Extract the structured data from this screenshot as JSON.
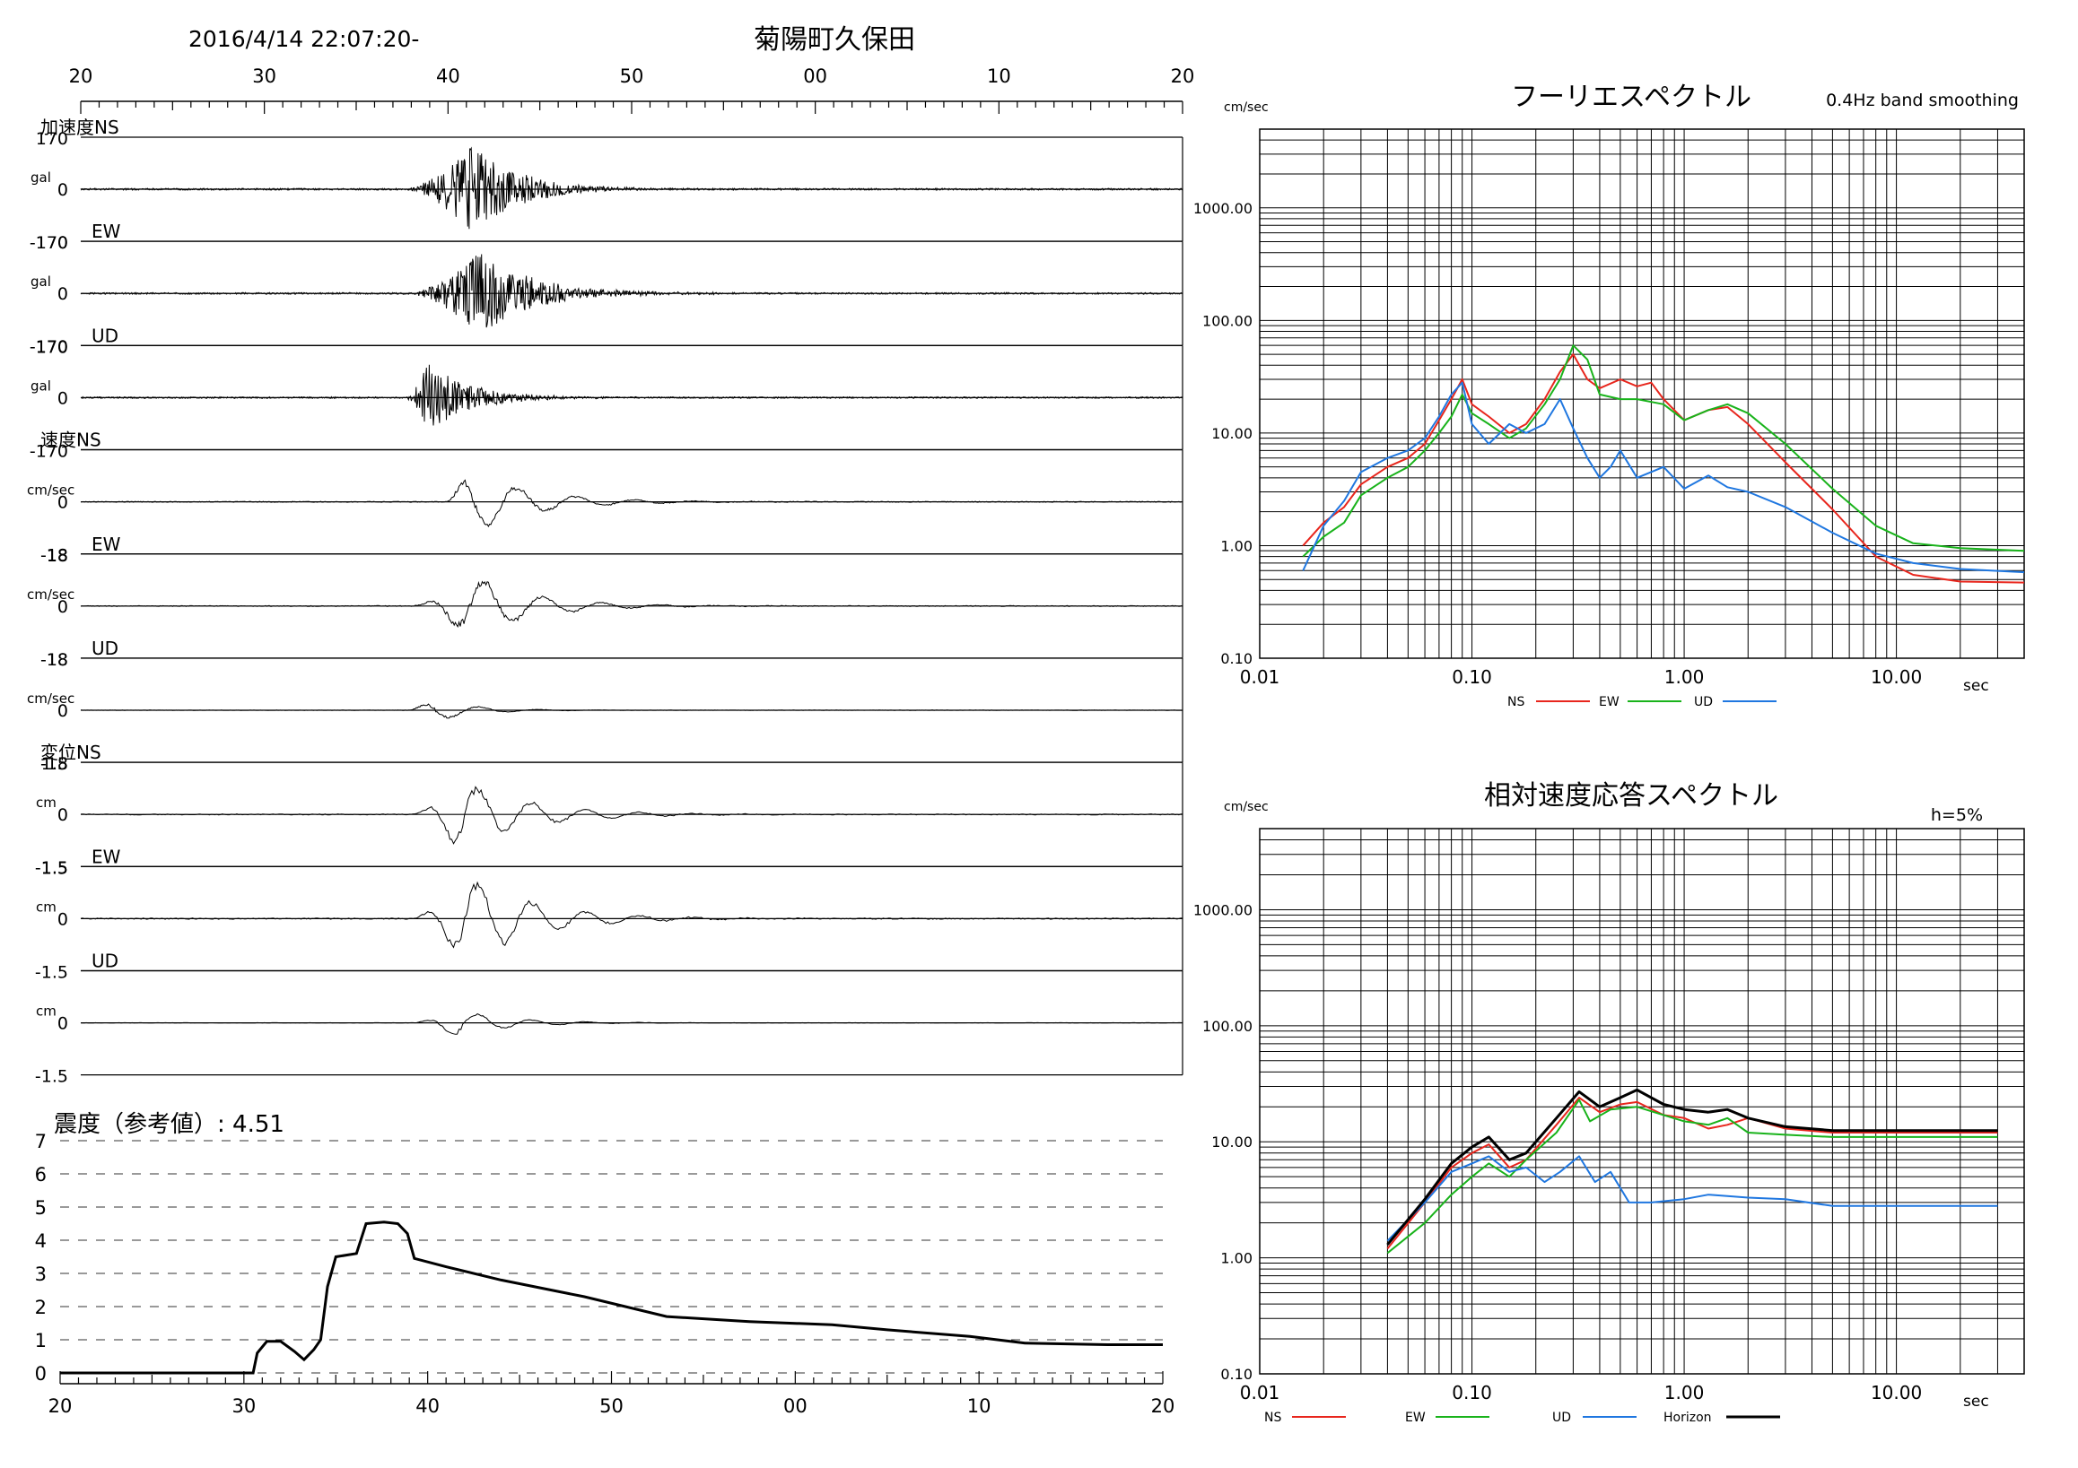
{
  "header": {
    "datetime": "2016/4/14 22:07:20-",
    "station": "菊陽町久保田"
  },
  "time_axis": {
    "top_labels": [
      "20",
      "30",
      "40",
      "50",
      "00",
      "10",
      "20"
    ],
    "bottom_labels": [
      "20",
      "30",
      "40",
      "50",
      "00",
      "10",
      "20"
    ]
  },
  "waveforms": {
    "group_labels": {
      "acc": "加速度",
      "vel": "速度",
      "disp": "変位"
    },
    "traces": [
      {
        "group": "acc",
        "comp": "NS",
        "unit": "gal",
        "max": "170",
        "zero": "0",
        "min": "-170",
        "amp": 0.42,
        "decay": 0.35,
        "start": 0.295,
        "peak": 0.355,
        "freq": 0.0012,
        "seed": 1
      },
      {
        "group": "acc",
        "comp": "EW",
        "unit": "gal",
        "max": "170",
        "zero": "0",
        "min": "-170",
        "amp": 0.4,
        "decay": 0.4,
        "start": 0.298,
        "peak": 0.362,
        "freq": 0.0014,
        "seed": 2
      },
      {
        "group": "acc",
        "comp": "UD",
        "unit": "gal",
        "max": "170",
        "zero": "0",
        "min": "-170",
        "amp": 0.36,
        "decay": 0.3,
        "start": 0.295,
        "peak": 0.315,
        "freq": 0.001,
        "seed": 3
      },
      {
        "group": "vel",
        "comp": "NS",
        "unit": "cm/sec",
        "max": "",
        "zero": "0",
        "min": "-18",
        "amp": 0.3,
        "decay": 0.45,
        "start": 0.33,
        "peak": 0.352,
        "freq": 0.006,
        "seed": 4
      },
      {
        "group": "vel",
        "comp": "EW",
        "unit": "cm/sec",
        "max": "18",
        "zero": "0",
        "min": "-18",
        "amp": 0.28,
        "decay": 0.45,
        "start": 0.3,
        "peak": 0.355,
        "freq": 0.006,
        "seed": 5
      },
      {
        "group": "vel",
        "comp": "UD",
        "unit": "cm/sec",
        "max": "18",
        "zero": "0",
        "min": "-18",
        "amp": 0.1,
        "decay": 0.3,
        "start": 0.295,
        "peak": 0.32,
        "freq": 0.005,
        "seed": 6
      },
      {
        "group": "disp",
        "comp": "NS",
        "unit": "cm",
        "max": "1.5",
        "zero": "0",
        "min": "-1.5",
        "amp": 0.32,
        "decay": 0.5,
        "start": 0.3,
        "peak": 0.345,
        "freq": 0.015,
        "seed": 7
      },
      {
        "group": "disp",
        "comp": "EW",
        "unit": "cm",
        "max": "1.5",
        "zero": "0",
        "min": "-1.5",
        "amp": 0.4,
        "decay": 0.5,
        "start": 0.3,
        "peak": 0.35,
        "freq": 0.015,
        "seed": 8
      },
      {
        "group": "disp",
        "comp": "UD",
        "unit": "cm",
        "max": "",
        "zero": "0",
        "min": "-1.5",
        "amp": 0.12,
        "decay": 0.4,
        "start": 0.3,
        "peak": 0.34,
        "freq": 0.015,
        "seed": 9
      }
    ]
  },
  "intensity": {
    "label": "震度（参考値）: 4.51",
    "y_ticks": [
      "7",
      "6",
      "5",
      "4",
      "3",
      "2",
      "1",
      "0"
    ]
  },
  "chart_data": [
    {
      "type": "line",
      "title": "震度（参考値）: 4.51",
      "x_unit": "seconds after 22:07:20",
      "x_ticks": [
        "20",
        "30",
        "40",
        "50",
        "00",
        "10",
        "20"
      ],
      "ylim": [
        0,
        7
      ],
      "series": [
        {
          "values": [
            [
              0,
              0
            ],
            [
              14,
              0
            ],
            [
              14.3,
              0.6
            ],
            [
              15,
              0.95
            ],
            [
              16,
              0.95
            ],
            [
              17,
              0.65
            ],
            [
              17.7,
              0.4
            ],
            [
              18.4,
              0.7
            ],
            [
              18.9,
              1.0
            ],
            [
              19.4,
              2.6
            ],
            [
              20,
              3.5
            ],
            [
              21.5,
              3.6
            ],
            [
              22.2,
              4.5
            ],
            [
              23.5,
              4.55
            ],
            [
              24.5,
              4.5
            ],
            [
              25.2,
              4.2
            ],
            [
              25.7,
              3.45
            ],
            [
              28,
              3.2
            ],
            [
              32,
              2.8
            ],
            [
              38,
              2.3
            ],
            [
              44,
              1.7
            ],
            [
              50,
              1.55
            ],
            [
              56,
              1.45
            ],
            [
              60,
              1.3
            ],
            [
              66,
              1.1
            ],
            [
              70,
              0.9
            ],
            [
              76,
              0.85
            ],
            [
              80,
              0.85
            ]
          ]
        }
      ]
    },
    {
      "type": "line",
      "title": "フーリエスペクトル",
      "subtitle": "0.4Hz band smoothing",
      "ylabel": "cm/sec",
      "xlabel": "sec",
      "x_scale": "log",
      "y_scale": "log",
      "xlim": [
        0.01,
        40
      ],
      "ylim": [
        0.1,
        5000
      ],
      "x_tick_labels": [
        "0.01",
        "0.10",
        "1.00",
        "10.00"
      ],
      "y_tick_labels": [
        "0.10",
        "1.00",
        "10.00",
        "100.00",
        "1000.00"
      ],
      "colors": {
        "NS": "#e8261d",
        "EW": "#19b31b",
        "UD": "#1f77e0"
      },
      "series": [
        {
          "name": "NS",
          "values": [
            [
              0.016,
              1.0
            ],
            [
              0.02,
              1.6
            ],
            [
              0.025,
              2.2
            ],
            [
              0.03,
              3.5
            ],
            [
              0.04,
              5
            ],
            [
              0.05,
              6
            ],
            [
              0.06,
              8
            ],
            [
              0.07,
              13
            ],
            [
              0.08,
              20
            ],
            [
              0.09,
              30
            ],
            [
              0.1,
              18
            ],
            [
              0.12,
              14
            ],
            [
              0.15,
              10
            ],
            [
              0.18,
              12
            ],
            [
              0.22,
              20
            ],
            [
              0.26,
              35
            ],
            [
              0.3,
              50
            ],
            [
              0.35,
              30
            ],
            [
              0.4,
              25
            ],
            [
              0.5,
              30
            ],
            [
              0.6,
              26
            ],
            [
              0.7,
              28
            ],
            [
              0.8,
              20
            ],
            [
              1.0,
              13
            ],
            [
              1.3,
              16
            ],
            [
              1.6,
              17
            ],
            [
              2.0,
              12
            ],
            [
              3.0,
              5.5
            ],
            [
              5.0,
              2.1
            ],
            [
              8.0,
              0.8
            ],
            [
              12,
              0.55
            ],
            [
              20,
              0.48
            ],
            [
              40,
              0.47
            ]
          ]
        },
        {
          "name": "EW",
          "values": [
            [
              0.016,
              0.8
            ],
            [
              0.02,
              1.2
            ],
            [
              0.025,
              1.6
            ],
            [
              0.03,
              2.8
            ],
            [
              0.04,
              4
            ],
            [
              0.05,
              5
            ],
            [
              0.06,
              7
            ],
            [
              0.07,
              10
            ],
            [
              0.08,
              14
            ],
            [
              0.09,
              22
            ],
            [
              0.1,
              15
            ],
            [
              0.12,
              12
            ],
            [
              0.15,
              9
            ],
            [
              0.18,
              11
            ],
            [
              0.22,
              18
            ],
            [
              0.26,
              30
            ],
            [
              0.3,
              60
            ],
            [
              0.35,
              45
            ],
            [
              0.4,
              22
            ],
            [
              0.5,
              20
            ],
            [
              0.6,
              20
            ],
            [
              0.8,
              18
            ],
            [
              1.0,
              13
            ],
            [
              1.3,
              16
            ],
            [
              1.6,
              18
            ],
            [
              2.0,
              15
            ],
            [
              3.0,
              8
            ],
            [
              5.0,
              3.2
            ],
            [
              8.0,
              1.5
            ],
            [
              12,
              1.05
            ],
            [
              20,
              0.95
            ],
            [
              40,
              0.9
            ]
          ]
        },
        {
          "name": "UD",
          "values": [
            [
              0.016,
              0.6
            ],
            [
              0.02,
              1.5
            ],
            [
              0.025,
              2.5
            ],
            [
              0.03,
              4.5
            ],
            [
              0.04,
              6
            ],
            [
              0.05,
              7
            ],
            [
              0.06,
              9
            ],
            [
              0.07,
              14
            ],
            [
              0.08,
              22
            ],
            [
              0.09,
              28
            ],
            [
              0.1,
              12
            ],
            [
              0.12,
              8
            ],
            [
              0.15,
              12
            ],
            [
              0.18,
              10
            ],
            [
              0.22,
              12
            ],
            [
              0.26,
              20
            ],
            [
              0.3,
              11
            ],
            [
              0.35,
              6
            ],
            [
              0.4,
              4
            ],
            [
              0.45,
              5
            ],
            [
              0.5,
              7
            ],
            [
              0.6,
              4
            ],
            [
              0.8,
              5
            ],
            [
              1.0,
              3.2
            ],
            [
              1.3,
              4.2
            ],
            [
              1.6,
              3.3
            ],
            [
              2.0,
              3.0
            ],
            [
              3.0,
              2.2
            ],
            [
              5.0,
              1.3
            ],
            [
              8.0,
              0.85
            ],
            [
              12,
              0.7
            ],
            [
              20,
              0.62
            ],
            [
              40,
              0.58
            ]
          ]
        }
      ]
    },
    {
      "type": "line",
      "title": "相対速度応答スペクトル",
      "subtitle": "h=5%",
      "ylabel": "cm/sec",
      "xlabel": "sec",
      "x_scale": "log",
      "y_scale": "log",
      "xlim": [
        0.01,
        40
      ],
      "ylim": [
        0.1,
        5000
      ],
      "x_tick_labels": [
        "0.01",
        "0.10",
        "1.00",
        "10.00"
      ],
      "y_tick_labels": [
        "0.10",
        "1.00",
        "10.00",
        "100.00",
        "1000.00"
      ],
      "colors": {
        "NS": "#e8261d",
        "EW": "#19b31b",
        "UD": "#1f77e0",
        "Horizon": "#000000"
      },
      "series": [
        {
          "name": "NS",
          "values": [
            [
              0.04,
              1.2
            ],
            [
              0.06,
              3
            ],
            [
              0.08,
              6
            ],
            [
              0.1,
              8
            ],
            [
              0.12,
              9.5
            ],
            [
              0.15,
              6
            ],
            [
              0.18,
              7
            ],
            [
              0.25,
              14
            ],
            [
              0.32,
              24
            ],
            [
              0.4,
              18
            ],
            [
              0.5,
              21
            ],
            [
              0.6,
              22
            ],
            [
              0.8,
              17
            ],
            [
              1.0,
              16
            ],
            [
              1.3,
              13
            ],
            [
              1.6,
              14
            ],
            [
              2.0,
              16
            ],
            [
              3.0,
              13
            ],
            [
              5.0,
              12
            ],
            [
              10,
              12
            ],
            [
              20,
              12
            ],
            [
              30,
              12
            ]
          ]
        },
        {
          "name": "EW",
          "values": [
            [
              0.04,
              1.1
            ],
            [
              0.06,
              2
            ],
            [
              0.08,
              3.5
            ],
            [
              0.1,
              5
            ],
            [
              0.12,
              6.5
            ],
            [
              0.15,
              5
            ],
            [
              0.18,
              7
            ],
            [
              0.25,
              12
            ],
            [
              0.32,
              23
            ],
            [
              0.36,
              15
            ],
            [
              0.45,
              19
            ],
            [
              0.6,
              20
            ],
            [
              0.8,
              17
            ],
            [
              1.0,
              15
            ],
            [
              1.3,
              14
            ],
            [
              1.6,
              16
            ],
            [
              2.0,
              12
            ],
            [
              3.0,
              11.5
            ],
            [
              5.0,
              11
            ],
            [
              10,
              11
            ],
            [
              20,
              11
            ],
            [
              30,
              11
            ]
          ]
        },
        {
          "name": "UD",
          "values": [
            [
              0.04,
              1.4
            ],
            [
              0.06,
              3
            ],
            [
              0.08,
              5.5
            ],
            [
              0.1,
              6.5
            ],
            [
              0.12,
              7.5
            ],
            [
              0.15,
              5.5
            ],
            [
              0.18,
              6
            ],
            [
              0.22,
              4.5
            ],
            [
              0.26,
              5.5
            ],
            [
              0.32,
              7.5
            ],
            [
              0.38,
              4.5
            ],
            [
              0.45,
              5.5
            ],
            [
              0.55,
              3
            ],
            [
              0.7,
              3
            ],
            [
              1.0,
              3.2
            ],
            [
              1.3,
              3.5
            ],
            [
              1.6,
              3.4
            ],
            [
              2.0,
              3.3
            ],
            [
              3.0,
              3.2
            ],
            [
              5.0,
              2.8
            ],
            [
              10,
              2.8
            ],
            [
              20,
              2.8
            ],
            [
              30,
              2.8
            ]
          ]
        },
        {
          "name": "Horizon",
          "values": [
            [
              0.04,
              1.3
            ],
            [
              0.06,
              3.2
            ],
            [
              0.08,
              6.5
            ],
            [
              0.1,
              9
            ],
            [
              0.12,
              11
            ],
            [
              0.15,
              7
            ],
            [
              0.18,
              8
            ],
            [
              0.25,
              16
            ],
            [
              0.32,
              27
            ],
            [
              0.4,
              20
            ],
            [
              0.5,
              24
            ],
            [
              0.6,
              28
            ],
            [
              0.8,
              21
            ],
            [
              1.0,
              19
            ],
            [
              1.3,
              18
            ],
            [
              1.6,
              19
            ],
            [
              2.0,
              16
            ],
            [
              3.0,
              13.5
            ],
            [
              5.0,
              12.5
            ],
            [
              10,
              12.5
            ],
            [
              20,
              12.5
            ],
            [
              30,
              12.5
            ]
          ]
        }
      ]
    }
  ]
}
